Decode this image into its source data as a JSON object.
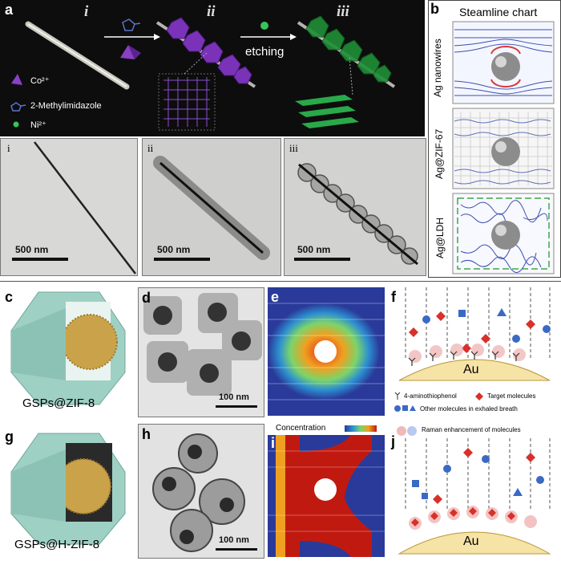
{
  "panel_a": {
    "letter": "a",
    "stage_labels": [
      "i",
      "ii",
      "iii"
    ],
    "arrow_label": "etching",
    "legend": [
      {
        "symbol": "purple-tetrahedron-icon",
        "text": "Co²⁺"
      },
      {
        "symbol": "imidazole-ring-icon",
        "text": "2-Methylimidazole"
      },
      {
        "symbol": "green-dot-icon",
        "text": "Ni²⁺"
      }
    ],
    "tem_labels": [
      "i",
      "ii",
      "iii"
    ],
    "scalebars": [
      "500 nm",
      "500 nm",
      "500 nm"
    ]
  },
  "panel_b": {
    "letter": "b",
    "title": "Steamline chart",
    "rows": [
      "Ag nanowires",
      "Ag@ZIF-67",
      "Ag@LDH"
    ]
  },
  "panel_c": {
    "letter": "c",
    "caption": "GSPs@ZIF-8"
  },
  "panel_d": {
    "letter": "d",
    "scalebar": "100 nm"
  },
  "panel_e": {
    "letter": "e"
  },
  "panel_f": {
    "letter": "f",
    "substrate": "Au",
    "legend": [
      {
        "icon": "y-linker-icon",
        "text": "4-aminothiophenol"
      },
      {
        "icon": "red-diamond-icon",
        "text": "Target molecules"
      },
      {
        "icon": "blue-shapes-icon",
        "text": "Other molecules in exhaled breath"
      },
      {
        "icon": "pink-halo-icon",
        "text": "Raman enhancement of molecules"
      }
    ]
  },
  "panel_g": {
    "letter": "g",
    "caption": "GSPs@H-ZIF-8"
  },
  "panel_h": {
    "letter": "h",
    "scalebar": "100 nm"
  },
  "panel_i": {
    "letter": "i",
    "colorbar_label": "Concentration"
  },
  "panel_j": {
    "letter": "j",
    "substrate": "Au"
  },
  "colors": {
    "dark_bg": "#0d0d0d",
    "zif_purple": "#6b2fa6",
    "ldh_green": "#1e8a32",
    "zif8_teal": "#9fd0c4",
    "streamline_blue": "#3b4fb0"
  }
}
